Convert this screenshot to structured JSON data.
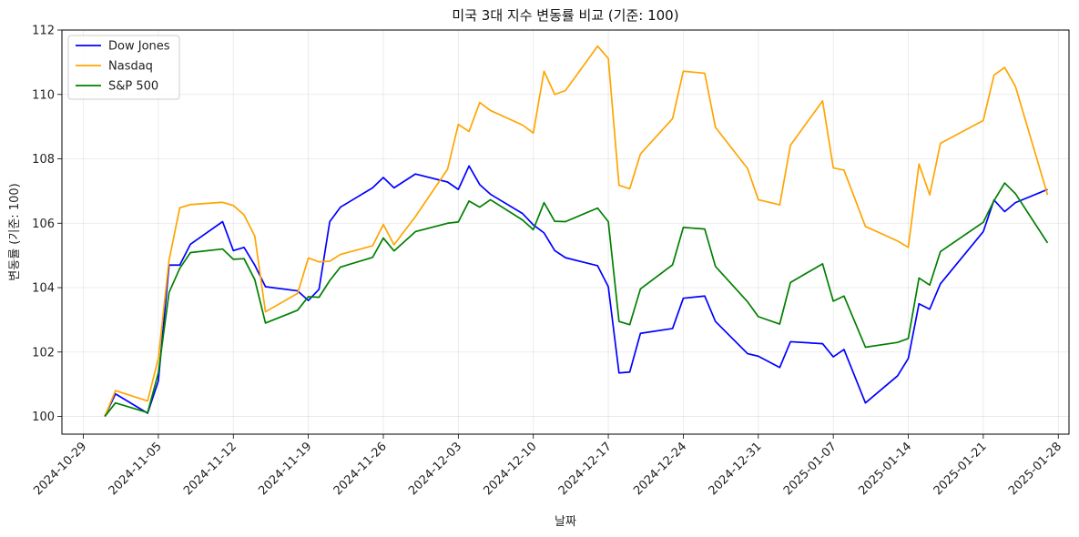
{
  "chart_data": {
    "type": "line",
    "title": "미국 3대 지수 변동률 비교 (기준: 100)",
    "xlabel": "날짜",
    "ylabel": "변동률 (기준: 100)",
    "x_tick_labels": [
      "2024-10-29",
      "2024-11-05",
      "2024-11-12",
      "2024-11-19",
      "2024-11-26",
      "2024-12-03",
      "2024-12-10",
      "2024-12-17",
      "2024-12-24",
      "2024-12-31",
      "2025-01-07",
      "2025-01-14",
      "2025-01-21",
      "2025-01-28"
    ],
    "y_ticks": [
      100,
      102,
      104,
      106,
      108,
      110,
      112
    ],
    "xlim": [
      "2024-10-27",
      "2025-01-29"
    ],
    "ylim": [
      99.45,
      112.0
    ],
    "grid": true,
    "legend_position": "top-left",
    "x": [
      "2024-10-31",
      "2024-11-01",
      "2024-11-04",
      "2024-11-05",
      "2024-11-06",
      "2024-11-07",
      "2024-11-08",
      "2024-11-11",
      "2024-11-12",
      "2024-11-13",
      "2024-11-14",
      "2024-11-15",
      "2024-11-18",
      "2024-11-19",
      "2024-11-20",
      "2024-11-21",
      "2024-11-22",
      "2024-11-25",
      "2024-11-26",
      "2024-11-27",
      "2024-11-29",
      "2024-12-02",
      "2024-12-03",
      "2024-12-04",
      "2024-12-05",
      "2024-12-06",
      "2024-12-09",
      "2024-12-10",
      "2024-12-11",
      "2024-12-12",
      "2024-12-13",
      "2024-12-16",
      "2024-12-17",
      "2024-12-18",
      "2024-12-19",
      "2024-12-20",
      "2024-12-23",
      "2024-12-24",
      "2024-12-26",
      "2024-12-27",
      "2024-12-30",
      "2024-12-31",
      "2025-01-02",
      "2025-01-03",
      "2025-01-06",
      "2025-01-07",
      "2025-01-08",
      "2025-01-10",
      "2025-01-13",
      "2025-01-14",
      "2025-01-15",
      "2025-01-16",
      "2025-01-17",
      "2025-01-21",
      "2025-01-22",
      "2025-01-23",
      "2025-01-24",
      "2025-01-27"
    ],
    "series": [
      {
        "name": "Dow Jones",
        "color": "#0000ff",
        "values": [
          100.0,
          100.7,
          100.1,
          101.1,
          104.7,
          104.7,
          105.35,
          106.05,
          105.15,
          105.25,
          104.7,
          104.03,
          103.9,
          103.6,
          103.95,
          106.05,
          106.5,
          107.1,
          107.42,
          107.1,
          107.53,
          107.28,
          107.05,
          107.78,
          107.2,
          106.9,
          106.3,
          105.95,
          105.7,
          105.15,
          104.93,
          104.68,
          104.03,
          101.35,
          101.38,
          102.58,
          102.73,
          103.67,
          103.74,
          102.95,
          101.95,
          101.87,
          101.52,
          102.32,
          102.26,
          101.85,
          102.08,
          100.42,
          101.26,
          101.8,
          103.5,
          103.33,
          104.12,
          105.74,
          106.72,
          106.36,
          106.64,
          107.05
        ]
      },
      {
        "name": "Nasdaq",
        "color": "#ffa500",
        "values": [
          100.0,
          100.8,
          100.48,
          101.8,
          104.85,
          106.48,
          106.58,
          106.65,
          106.55,
          106.26,
          105.6,
          103.25,
          103.82,
          104.92,
          104.8,
          104.82,
          105.03,
          105.3,
          105.96,
          105.33,
          106.21,
          107.68,
          109.07,
          108.85,
          109.75,
          109.5,
          109.05,
          108.8,
          110.72,
          110.0,
          110.12,
          111.5,
          111.12,
          107.18,
          107.07,
          108.15,
          109.25,
          110.72,
          110.66,
          108.98,
          107.7,
          106.73,
          106.57,
          108.42,
          109.8,
          107.72,
          107.65,
          105.9,
          105.45,
          105.25,
          107.84,
          106.88,
          108.48,
          109.19,
          110.6,
          110.84,
          110.25,
          106.88
        ]
      },
      {
        "name": "S&P 500",
        "color": "#008000",
        "values": [
          100.0,
          100.42,
          100.12,
          101.35,
          103.85,
          104.6,
          105.09,
          105.2,
          104.88,
          104.9,
          104.25,
          102.9,
          103.3,
          103.72,
          103.7,
          104.22,
          104.64,
          104.94,
          105.54,
          105.14,
          105.74,
          106.0,
          106.04,
          106.69,
          106.5,
          106.73,
          106.1,
          105.8,
          106.64,
          106.06,
          106.05,
          106.47,
          106.05,
          102.95,
          102.85,
          103.96,
          104.71,
          105.87,
          105.82,
          104.66,
          103.56,
          103.1,
          102.87,
          104.16,
          104.74,
          103.58,
          103.74,
          102.15,
          102.3,
          102.42,
          104.3,
          104.08,
          105.12,
          106.03,
          106.7,
          107.25,
          106.92,
          105.39
        ]
      }
    ]
  }
}
